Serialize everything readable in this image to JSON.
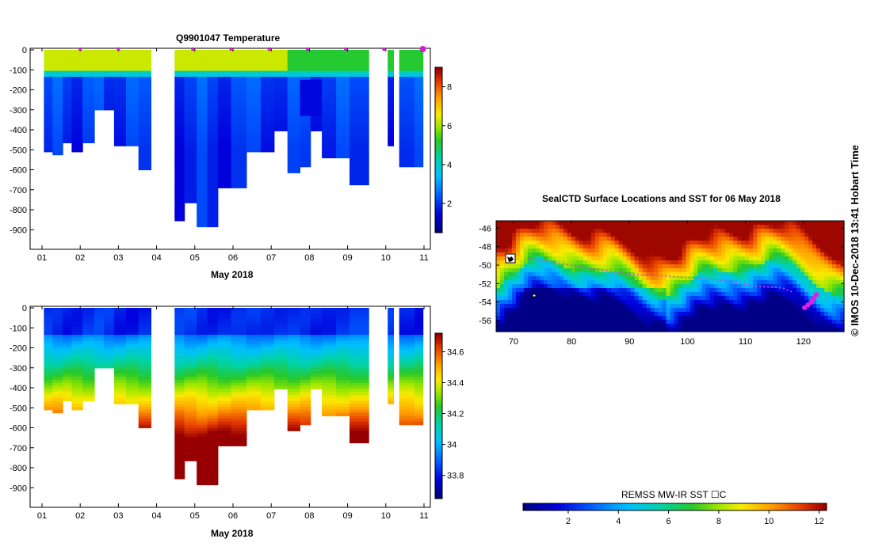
{
  "page": {
    "left_title": "Q9901047  Temperature",
    "right_title": "SealCTD Surface Locations and SST for 06 May 2018",
    "credit": "© IMOS 10-Dec-2018 13:41 Hobart Time"
  },
  "chart_data": [
    {
      "type": "heatmap",
      "id": "temperature",
      "title": "Q9901047  Temperature",
      "xlabel": "May 2018",
      "ylabel": "",
      "x_ticks": [
        "01",
        "02",
        "03",
        "04",
        "05",
        "06",
        "07",
        "08",
        "09",
        "10",
        "11"
      ],
      "y_ticks": [
        0,
        -100,
        -200,
        -300,
        -400,
        -500,
        -600,
        -700,
        -800,
        -900
      ],
      "xlim": [
        1,
        11
      ],
      "ylim": [
        -990,
        0
      ],
      "profile_times": [
        1.12,
        1.43,
        1.65,
        1.9,
        2.22,
        2.52,
        2.72,
        3.05,
        3.35,
        3.7,
        4.55,
        4.9,
        5.2,
        5.45,
        5.75,
        6.15,
        6.55,
        6.9,
        7.25,
        7.6,
        7.9,
        8.15,
        8.5,
        8.9,
        9.2,
        10.1,
        10.6,
        10.9
      ],
      "profile_depths": [
        500,
        525,
        455,
        510,
        455,
        300,
        300,
        475,
        475,
        600,
        845,
        755,
        875,
        875,
        685,
        685,
        505,
        505,
        400,
        610,
        575,
        400,
        540,
        540,
        665,
        470,
        575,
        575
      ],
      "surface_markers": [
        2,
        3,
        4.95,
        5.95,
        6.95,
        7.95,
        8.95,
        9.95,
        10.97
      ],
      "colorbar": {
        "ticks": [
          2,
          4,
          6,
          8
        ],
        "range": [
          0.5,
          9
        ]
      }
    },
    {
      "type": "heatmap",
      "id": "salinity",
      "title": "",
      "xlabel": "May 2018",
      "ylabel": "",
      "x_ticks": [
        "01",
        "02",
        "03",
        "04",
        "05",
        "06",
        "07",
        "08",
        "09",
        "10",
        "11"
      ],
      "y_ticks": [
        0,
        -100,
        -200,
        -300,
        -400,
        -500,
        -600,
        -700,
        -800,
        -900
      ],
      "xlim": [
        1,
        11
      ],
      "ylim": [
        -990,
        0
      ],
      "colorbar": {
        "ticks": [
          "33.8",
          "34",
          "34.2",
          "34.4",
          "34.6"
        ],
        "range": [
          33.65,
          34.72
        ]
      }
    },
    {
      "type": "heatmap",
      "id": "sst_map",
      "title": "SealCTD Surface Locations and SST for 06 May 2018",
      "x_ticks": [
        "70",
        "80",
        "90",
        "100",
        "110",
        "120"
      ],
      "y_ticks": [
        "-46",
        "-48",
        "-50",
        "-52",
        "-54",
        "-56"
      ],
      "xlim": [
        67,
        127
      ],
      "ylim": [
        -57.2,
        -45.2
      ],
      "colorbar": {
        "label": "REMSS MW-IR SST ☐C",
        "ticks": [
          "2",
          "4",
          "6",
          "8",
          "10",
          "12"
        ],
        "range": [
          0.2,
          12.3
        ]
      },
      "track": [
        [
          118.0,
          -52.9
        ],
        [
          116.5,
          -52.5
        ],
        [
          115.0,
          -52.4
        ],
        [
          112.5,
          -52.3
        ],
        [
          110.0,
          -52.1
        ],
        [
          107.5,
          -51.8
        ],
        [
          105.0,
          -51.6
        ],
        [
          102.0,
          -51.4
        ],
        [
          99.0,
          -51.3
        ],
        [
          96.0,
          -51.2
        ],
        [
          93.0,
          -51.1
        ],
        [
          90.0,
          -51.0
        ],
        [
          87.0,
          -50.7
        ],
        [
          84.0,
          -50.4
        ],
        [
          81.0,
          -50.1
        ],
        [
          78.0,
          -49.8
        ],
        [
          75.0,
          -49.5
        ],
        [
          72.0,
          -49.3
        ]
      ],
      "current_locations": [
        [
          120.2,
          -54.6
        ],
        [
          120.8,
          -54.3
        ],
        [
          121.4,
          -54.0
        ],
        [
          121.8,
          -53.6
        ],
        [
          122.2,
          -53.2
        ]
      ]
    }
  ]
}
